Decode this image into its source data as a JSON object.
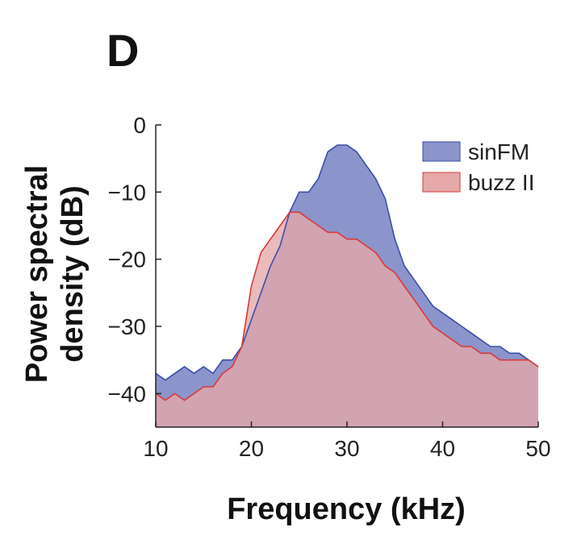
{
  "panel_label": "D",
  "colors": {
    "sinFM_fill": "#8c94cc",
    "sinFM_line": "#3a4fa8",
    "buzz_fill": "#e6a8a8",
    "buzz_line": "#d63a3a",
    "overlap": "#b07f98"
  },
  "chart_data": {
    "type": "area",
    "xlabel": "Frequency (kHz)",
    "ylabel": "Power spectral density (dB)",
    "ylabel_lines": [
      "Power spectral",
      "density (dB)"
    ],
    "xlim": [
      10,
      50
    ],
    "ylim": [
      -45,
      0
    ],
    "x_ticks": [
      10,
      20,
      30,
      40,
      50
    ],
    "x_tick_labels": [
      "10",
      "20",
      "30",
      "40",
      "50"
    ],
    "y_ticks": [
      0,
      -10,
      -20,
      -30,
      -40
    ],
    "y_tick_labels": [
      "0",
      "−10",
      "−20",
      "−30",
      "−40"
    ],
    "legend_position": "top-right",
    "x": [
      10,
      11,
      12,
      13,
      14,
      15,
      16,
      17,
      18,
      19,
      20,
      21,
      22,
      23,
      24,
      25,
      26,
      27,
      28,
      29,
      30,
      31,
      32,
      33,
      34,
      35,
      36,
      37,
      38,
      39,
      40,
      41,
      42,
      43,
      44,
      45,
      46,
      47,
      48,
      49,
      50
    ],
    "series": [
      {
        "name": "sinFM",
        "values": [
          -37,
          -38,
          -37,
          -36,
          -37,
          -36,
          -37,
          -35,
          -35,
          -33,
          -29,
          -25,
          -21,
          -18,
          -13,
          -10,
          -10,
          -8,
          -4,
          -3,
          -3,
          -4,
          -6,
          -8,
          -11,
          -17,
          -21,
          -23,
          -25,
          -27,
          -28,
          -29,
          -30,
          -31,
          -32,
          -33,
          -33,
          -34,
          -34,
          -35,
          -36
        ]
      },
      {
        "name": "buzz II",
        "values": [
          -40,
          -41,
          -40,
          -41,
          -40,
          -39,
          -39,
          -37,
          -36,
          -33,
          -24,
          -19,
          -17,
          -15,
          -13,
          -13,
          -14,
          -15,
          -16,
          -16,
          -17,
          -17,
          -18,
          -19,
          -21,
          -22,
          -24,
          -26,
          -28,
          -30,
          -31,
          -32,
          -33,
          -33,
          -34,
          -34,
          -35,
          -35,
          -35,
          -35,
          -36
        ]
      }
    ]
  }
}
